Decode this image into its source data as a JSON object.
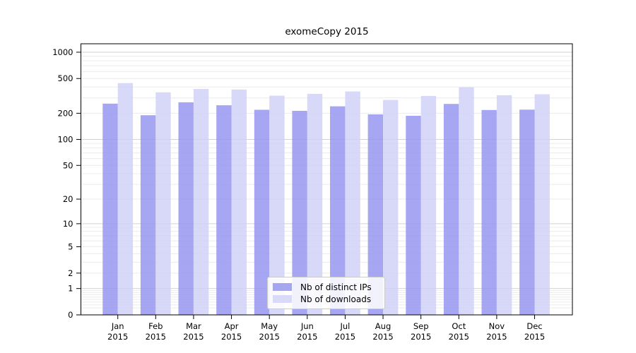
{
  "chart_data": {
    "type": "bar",
    "title": "exomeCopy 2015",
    "categories": [
      "Jan",
      "Feb",
      "Mar",
      "Apr",
      "May",
      "Jun",
      "Jul",
      "Aug",
      "Sep",
      "Oct",
      "Nov",
      "Dec"
    ],
    "x_tick_year": "2015",
    "series": [
      {
        "name": "Nb of distinct IPs",
        "color": "#a5a5f0",
        "fill_rgba": "rgba(146,146,239,0.82)",
        "values": [
          258,
          190,
          267,
          247,
          219,
          213,
          240,
          194,
          187,
          256,
          218,
          220
        ]
      },
      {
        "name": "Nb of downloads",
        "color": "#d9d9f8",
        "fill_rgba": "rgba(208,208,246,0.82)",
        "values": [
          443,
          347,
          380,
          374,
          318,
          334,
          355,
          284,
          316,
          397,
          322,
          330
        ]
      }
    ],
    "yscale": "log1p",
    "y_ticks": [
      0,
      1,
      2,
      5,
      10,
      20,
      50,
      100,
      200,
      500,
      1000
    ],
    "y_major_gridlines": [
      1,
      10,
      100,
      1000
    ],
    "ylim": [
      0,
      1250
    ],
    "xlabel": "",
    "ylabel": "",
    "grid": true,
    "legend_position": "bottom-center-inside",
    "colors": {
      "grid_minor": "#ececec",
      "grid_major": "#d2d2d2",
      "axis": "#000000",
      "text": "#000000",
      "background": "#ffffff"
    }
  }
}
